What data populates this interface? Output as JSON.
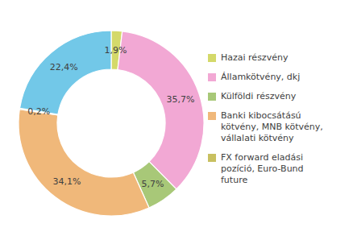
{
  "chart_data": {
    "type": "pie",
    "categories": [
      "Hazai részvény",
      "Államkötvény, dkj",
      "Külföldi részvény",
      "Banki kibocsátású\nkötvény, MNB kötvény,\nvállalati kötvény",
      "FX forward eladási\npozíció, Euro-Bund\nfuture",
      null
    ],
    "values": [
      1.9,
      35.7,
      5.7,
      34.1,
      0.2,
      22.4
    ],
    "value_labels": [
      "1,9%",
      "35,7%",
      "5,7%",
      "34,1%",
      "0,2%",
      "22,4%"
    ],
    "colors": [
      "#d4d96a",
      "#f2a8d4",
      "#a8c878",
      "#f0b87a",
      "#c8c060",
      "#72c8e8"
    ],
    "data_labels": true,
    "legend": "right"
  }
}
